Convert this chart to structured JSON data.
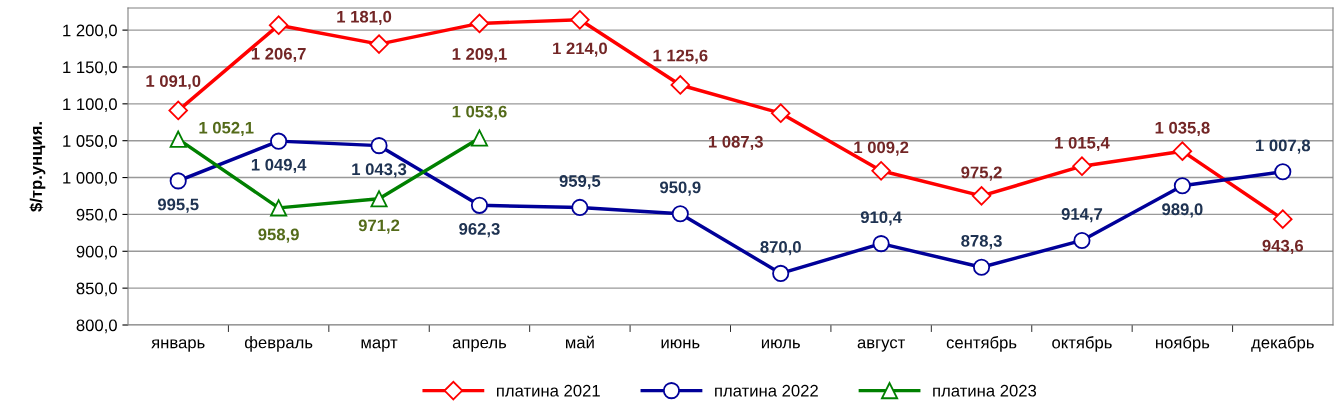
{
  "chart_data": {
    "type": "line",
    "ylabel": "$/тр.унция.",
    "categories": [
      "январь",
      "февраль",
      "март",
      "апрель",
      "май",
      "июнь",
      "июль",
      "август",
      "сентябрь",
      "октябрь",
      "ноябрь",
      "декабрь"
    ],
    "series": [
      {
        "name": "платина 2021",
        "color": "#ff0000",
        "marker": "diamond",
        "values": [
          1091.0,
          1206.7,
          1181.0,
          1209.1,
          1214.0,
          1125.6,
          1087.3,
          1009.2,
          975.2,
          1015.4,
          1035.8,
          943.6
        ],
        "value_labels": [
          "1 091,0",
          "1 206,7",
          "1 181,0",
          "1 209,1",
          "1 214,0",
          "1 125,6",
          "1 087,3",
          "1 009,2",
          "975,2",
          "1 015,4",
          "1 035,8",
          "943,6"
        ]
      },
      {
        "name": "платина 2022",
        "color": "#000099",
        "marker": "circle",
        "values": [
          995.5,
          1049.4,
          1043.3,
          962.3,
          959.5,
          950.9,
          870.0,
          910.4,
          878.3,
          914.7,
          989.0,
          1007.8
        ],
        "value_labels": [
          "995,5",
          "1 049,4",
          "1 043,3",
          "962,3",
          "959,5",
          "950,9",
          "870,0",
          "910,4",
          "878,3",
          "914,7",
          "989,0",
          "1 007,8"
        ]
      },
      {
        "name": "платина 2023",
        "color": "#008000",
        "marker": "triangle",
        "values": [
          1052.1,
          958.9,
          971.2,
          1053.6,
          null,
          null,
          null,
          null,
          null,
          null,
          null,
          null
        ],
        "value_labels": [
          "1 052,1",
          "958,9",
          "971,2",
          "1 053,6",
          null,
          null,
          null,
          null,
          null,
          null,
          null,
          null
        ]
      }
    ],
    "ylim": [
      800,
      1230
    ],
    "yticks": [
      {
        "value": 800,
        "label": "800,0"
      },
      {
        "value": 850,
        "label": "850,0"
      },
      {
        "value": 900,
        "label": "900,0"
      },
      {
        "value": 950,
        "label": "950,0"
      },
      {
        "value": 1000,
        "label": "1 000,0"
      },
      {
        "value": 1050,
        "label": "1 050,0"
      },
      {
        "value": 1100,
        "label": "1 100,0"
      },
      {
        "value": 1150,
        "label": "1 150,0"
      },
      {
        "value": 1200,
        "label": "1 200,0"
      }
    ],
    "grid": "y",
    "legend": "bottom",
    "line_style": "solid"
  }
}
